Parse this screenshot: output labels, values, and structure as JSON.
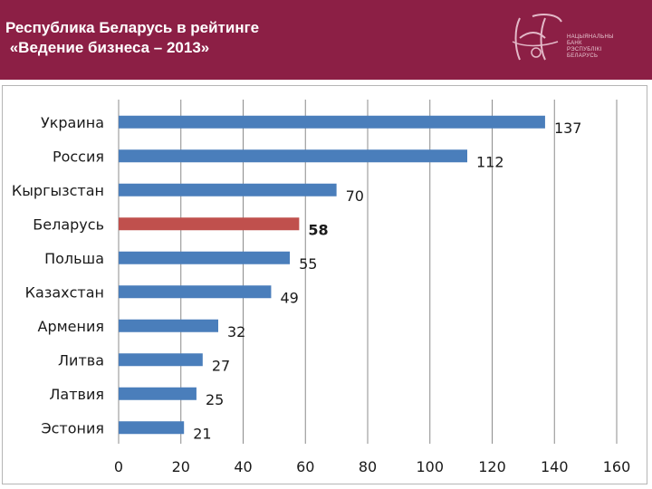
{
  "header": {
    "title_line1": "Республика Беларусь в рейтинге",
    "title_line2": " «Ведение бизнеса – 2013»",
    "logo_text": [
      "НАЦЫЯНАЛЬНЫ",
      "БАНК",
      "РЭСПУБЛІКІ",
      "БЕЛАРУСЬ"
    ]
  },
  "colors": {
    "header_bg": "#8c1f45",
    "bar_default": "#4a7ebb",
    "bar_highlight": "#c0504d"
  },
  "chart_data": {
    "type": "bar",
    "orientation": "horizontal",
    "categories": [
      "Украина",
      "Россия",
      "Кыргызстан",
      "Беларусь",
      "Польша",
      "Казахстан",
      "Армения",
      "Литва",
      "Латвия",
      "Эстония"
    ],
    "values": [
      137,
      112,
      70,
      58,
      55,
      49,
      32,
      27,
      25,
      21
    ],
    "highlight": "Беларусь",
    "xlim": [
      0,
      160
    ],
    "xticks": [
      0,
      20,
      40,
      60,
      80,
      100,
      120,
      140,
      160
    ],
    "grid": true
  }
}
